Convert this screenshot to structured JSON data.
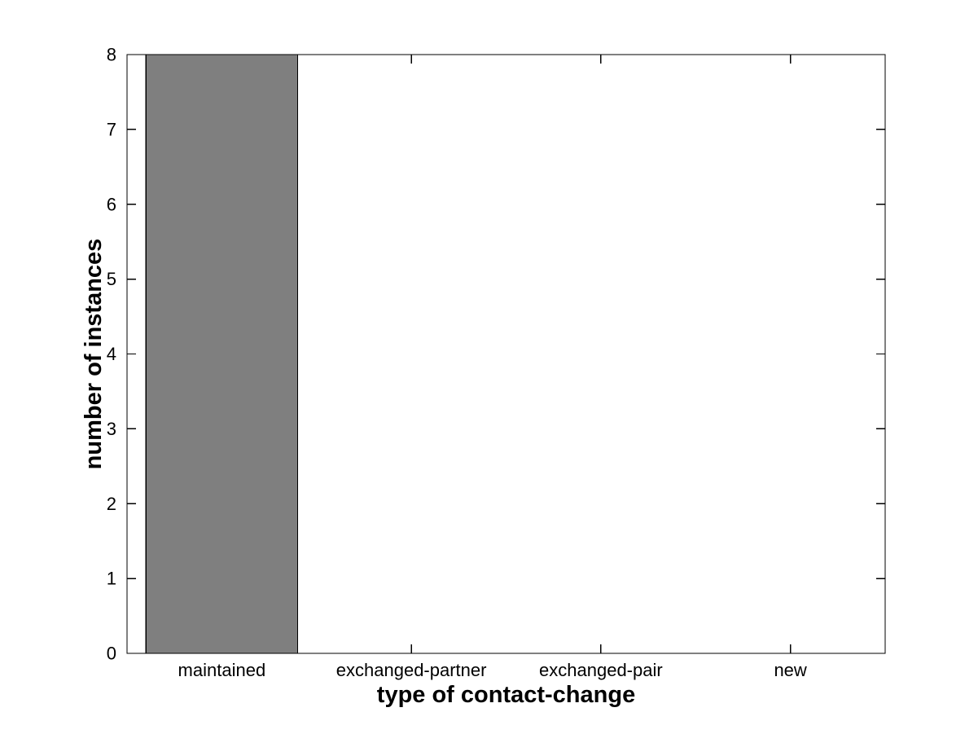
{
  "figure": {
    "background": "#ffffff"
  },
  "chart_data": {
    "type": "bar",
    "categories": [
      "maintained",
      "exchanged-partner",
      "exchanged-pair",
      "new"
    ],
    "values": [
      8,
      0,
      0,
      0
    ],
    "xlabel": "type of contact-change",
    "ylabel": "number of instances",
    "ylim": [
      0,
      8
    ],
    "yticks": [
      0,
      1,
      2,
      3,
      4,
      5,
      6,
      7,
      8
    ],
    "bar_color": "#7f7f7f",
    "bar_edge_color": "#000000",
    "axis_color": "#000000",
    "text_color": "#000000",
    "bar_width_fraction": 0.8,
    "grid": false,
    "legend": "none",
    "box": true,
    "tick_direction": "in"
  }
}
